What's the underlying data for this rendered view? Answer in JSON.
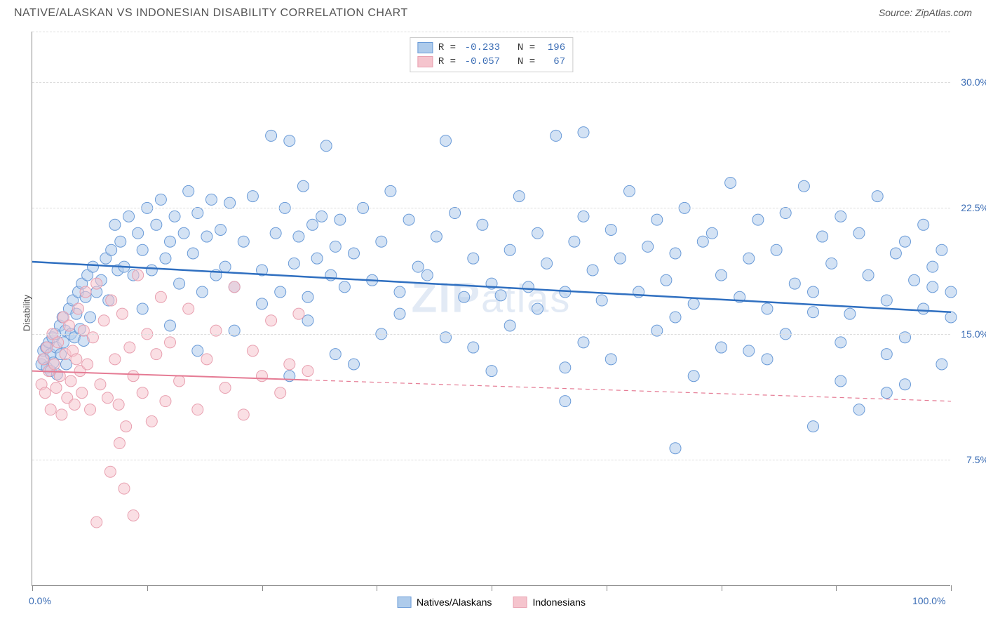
{
  "title": "NATIVE/ALASKAN VS INDONESIAN DISABILITY CORRELATION CHART",
  "source": "Source: ZipAtlas.com",
  "ylabel": "Disability",
  "watermark_bold": "ZIP",
  "watermark_rest": "atlas",
  "chart": {
    "type": "scatter",
    "xlim": [
      0,
      100
    ],
    "ylim": [
      0,
      33
    ],
    "y_gridlines": [
      7.5,
      15.0,
      22.5,
      30.0
    ],
    "y_grid_labels": [
      "7.5%",
      "15.0%",
      "22.5%",
      "30.0%"
    ],
    "x_ticks": [
      0,
      12.5,
      25,
      37.5,
      50,
      62.5,
      75,
      87.5,
      100
    ],
    "x_labels_shown": {
      "0": "0.0%",
      "100": "100.0%"
    },
    "grid_color": "#dddddd",
    "axis_color": "#888888",
    "label_color": "#3b6db5",
    "background": "#ffffff",
    "marker_radius": 8,
    "marker_opacity": 0.55,
    "series": [
      {
        "name": "Natives/Alaskans",
        "fill": "#aecbeb",
        "stroke": "#6a9bd8",
        "line_color": "#2f6fc0",
        "line_width": 2.5,
        "r": -0.233,
        "n": 196,
        "trend": {
          "x1": 0,
          "y1": 19.3,
          "x2": 100,
          "y2": 16.3,
          "dash_from": 100
        },
        "points": [
          [
            1,
            13.2
          ],
          [
            1.2,
            14
          ],
          [
            1.3,
            13.5
          ],
          [
            1.5,
            14.2
          ],
          [
            1.6,
            13
          ],
          [
            1.8,
            14.5
          ],
          [
            2,
            13.8
          ],
          [
            2,
            12.8
          ],
          [
            2.2,
            14.8
          ],
          [
            2.3,
            13.3
          ],
          [
            2.5,
            15
          ],
          [
            2.6,
            14.2
          ],
          [
            2.7,
            12.6
          ],
          [
            3,
            15.5
          ],
          [
            3.1,
            13.8
          ],
          [
            3.3,
            16
          ],
          [
            3.4,
            14.5
          ],
          [
            3.6,
            15.2
          ],
          [
            3.7,
            13.2
          ],
          [
            4,
            16.5
          ],
          [
            4.2,
            15
          ],
          [
            4.4,
            17
          ],
          [
            4.6,
            14.8
          ],
          [
            4.8,
            16.2
          ],
          [
            5,
            17.5
          ],
          [
            5.2,
            15.3
          ],
          [
            5.4,
            18
          ],
          [
            5.6,
            14.6
          ],
          [
            5.8,
            17.2
          ],
          [
            6,
            18.5
          ],
          [
            6.3,
            16
          ],
          [
            6.6,
            19
          ],
          [
            7,
            17.5
          ],
          [
            7.5,
            18.2
          ],
          [
            8,
            19.5
          ],
          [
            8.3,
            17
          ],
          [
            8.6,
            20
          ],
          [
            9,
            21.5
          ],
          [
            9.3,
            18.8
          ],
          [
            9.6,
            20.5
          ],
          [
            10,
            19
          ],
          [
            10.5,
            22
          ],
          [
            11,
            18.5
          ],
          [
            11.5,
            21
          ],
          [
            12,
            20
          ],
          [
            12.5,
            22.5
          ],
          [
            13,
            18.8
          ],
          [
            13.5,
            21.5
          ],
          [
            14,
            23
          ],
          [
            14.5,
            19.5
          ],
          [
            15,
            20.5
          ],
          [
            15.5,
            22
          ],
          [
            16,
            18
          ],
          [
            16.5,
            21
          ],
          [
            17,
            23.5
          ],
          [
            17.5,
            19.8
          ],
          [
            18,
            22.2
          ],
          [
            18.5,
            17.5
          ],
          [
            19,
            20.8
          ],
          [
            19.5,
            23
          ],
          [
            20,
            18.5
          ],
          [
            20.5,
            21.2
          ],
          [
            21,
            19
          ],
          [
            21.5,
            22.8
          ],
          [
            22,
            17.8
          ],
          [
            23,
            20.5
          ],
          [
            24,
            23.2
          ],
          [
            25,
            18.8
          ],
          [
            26,
            26.8
          ],
          [
            26.5,
            21
          ],
          [
            27,
            17.5
          ],
          [
            27.5,
            22.5
          ],
          [
            28,
            26.5
          ],
          [
            28.5,
            19.2
          ],
          [
            29,
            20.8
          ],
          [
            29.5,
            23.8
          ],
          [
            30,
            17.2
          ],
          [
            30.5,
            21.5
          ],
          [
            31,
            19.5
          ],
          [
            31.5,
            22
          ],
          [
            32,
            26.2
          ],
          [
            32.5,
            18.5
          ],
          [
            33,
            20.2
          ],
          [
            33.5,
            21.8
          ],
          [
            34,
            17.8
          ],
          [
            35,
            19.8
          ],
          [
            36,
            22.5
          ],
          [
            37,
            18.2
          ],
          [
            38,
            20.5
          ],
          [
            39,
            23.5
          ],
          [
            40,
            17.5
          ],
          [
            41,
            21.8
          ],
          [
            42,
            19
          ],
          [
            43,
            18.5
          ],
          [
            44,
            20.8
          ],
          [
            45,
            26.5
          ],
          [
            46,
            22.2
          ],
          [
            47,
            17.2
          ],
          [
            48,
            19.5
          ],
          [
            49,
            21.5
          ],
          [
            50,
            18
          ],
          [
            51,
            17.3
          ],
          [
            52,
            20
          ],
          [
            53,
            23.2
          ],
          [
            54,
            17.8
          ],
          [
            55,
            21
          ],
          [
            56,
            19.2
          ],
          [
            57,
            26.8
          ],
          [
            58,
            17.5
          ],
          [
            58,
            11
          ],
          [
            59,
            20.5
          ],
          [
            60,
            22
          ],
          [
            60,
            27
          ],
          [
            61,
            18.8
          ],
          [
            62,
            17
          ],
          [
            63,
            21.2
          ],
          [
            64,
            19.5
          ],
          [
            65,
            23.5
          ],
          [
            66,
            17.5
          ],
          [
            67,
            20.2
          ],
          [
            68,
            21.8
          ],
          [
            69,
            18.2
          ],
          [
            70,
            19.8
          ],
          [
            70,
            8.2
          ],
          [
            71,
            22.5
          ],
          [
            72,
            16.8
          ],
          [
            73,
            20.5
          ],
          [
            74,
            21
          ],
          [
            75,
            18.5
          ],
          [
            76,
            24
          ],
          [
            77,
            17.2
          ],
          [
            78,
            19.5
          ],
          [
            79,
            21.8
          ],
          [
            80,
            16.5
          ],
          [
            81,
            20
          ],
          [
            82,
            22.2
          ],
          [
            83,
            18
          ],
          [
            84,
            23.8
          ],
          [
            85,
            17.5
          ],
          [
            85,
            9.5
          ],
          [
            86,
            20.8
          ],
          [
            87,
            19.2
          ],
          [
            88,
            22
          ],
          [
            89,
            16.2
          ],
          [
            90,
            21
          ],
          [
            90,
            10.5
          ],
          [
            91,
            18.5
          ],
          [
            92,
            23.2
          ],
          [
            93,
            17
          ],
          [
            93,
            11.5
          ],
          [
            94,
            19.8
          ],
          [
            95,
            20.5
          ],
          [
            95,
            12
          ],
          [
            96,
            18.2
          ],
          [
            97,
            21.5
          ],
          [
            97,
            16.5
          ],
          [
            98,
            17.8
          ],
          [
            98,
            19
          ],
          [
            99,
            13.2
          ],
          [
            99,
            20
          ],
          [
            100,
            17.5
          ],
          [
            100,
            16
          ],
          [
            15,
            15.5
          ],
          [
            22,
            15.2
          ],
          [
            30,
            15.8
          ],
          [
            38,
            15
          ],
          [
            45,
            14.8
          ],
          [
            52,
            15.5
          ],
          [
            60,
            14.5
          ],
          [
            68,
            15.2
          ],
          [
            75,
            14.2
          ],
          [
            82,
            15
          ],
          [
            88,
            14.5
          ],
          [
            95,
            14.8
          ],
          [
            12,
            16.5
          ],
          [
            25,
            16.8
          ],
          [
            40,
            16.2
          ],
          [
            55,
            16.5
          ],
          [
            70,
            16
          ],
          [
            85,
            16.3
          ],
          [
            18,
            14
          ],
          [
            33,
            13.8
          ],
          [
            48,
            14.2
          ],
          [
            63,
            13.5
          ],
          [
            78,
            14
          ],
          [
            93,
            13.8
          ],
          [
            28,
            12.5
          ],
          [
            50,
            12.8
          ],
          [
            72,
            12.5
          ],
          [
            88,
            12.2
          ],
          [
            35,
            13.2
          ],
          [
            58,
            13
          ],
          [
            80,
            13.5
          ]
        ]
      },
      {
        "name": "Indonesians",
        "fill": "#f5c4cd",
        "stroke": "#e8a0b0",
        "line_color": "#e57b94",
        "line_width": 2,
        "r": -0.057,
        "n": 67,
        "trend": {
          "x1": 0,
          "y1": 12.8,
          "x2": 100,
          "y2": 11.0,
          "dash_from": 30
        },
        "points": [
          [
            1,
            12
          ],
          [
            1.2,
            13.5
          ],
          [
            1.4,
            11.5
          ],
          [
            1.6,
            14.2
          ],
          [
            1.8,
            12.8
          ],
          [
            2,
            10.5
          ],
          [
            2.2,
            15
          ],
          [
            2.4,
            13.2
          ],
          [
            2.6,
            11.8
          ],
          [
            2.8,
            14.5
          ],
          [
            3,
            12.5
          ],
          [
            3.2,
            10.2
          ],
          [
            3.4,
            16
          ],
          [
            3.6,
            13.8
          ],
          [
            3.8,
            11.2
          ],
          [
            4,
            15.5
          ],
          [
            4.2,
            12.2
          ],
          [
            4.4,
            14
          ],
          [
            4.6,
            10.8
          ],
          [
            4.8,
            13.5
          ],
          [
            5,
            16.5
          ],
          [
            5.2,
            12.8
          ],
          [
            5.4,
            11.5
          ],
          [
            5.6,
            15.2
          ],
          [
            5.8,
            17.5
          ],
          [
            6,
            13.2
          ],
          [
            6.3,
            10.5
          ],
          [
            6.6,
            14.8
          ],
          [
            7,
            18
          ],
          [
            7.4,
            12
          ],
          [
            7.8,
            15.8
          ],
          [
            8.2,
            11.2
          ],
          [
            8.6,
            17
          ],
          [
            9,
            13.5
          ],
          [
            9.4,
            10.8
          ],
          [
            9.8,
            16.2
          ],
          [
            10.2,
            9.5
          ],
          [
            10.6,
            14.2
          ],
          [
            11,
            12.5
          ],
          [
            11.5,
            18.5
          ],
          [
            12,
            11.5
          ],
          [
            12.5,
            15
          ],
          [
            13,
            9.8
          ],
          [
            13.5,
            13.8
          ],
          [
            14,
            17.2
          ],
          [
            14.5,
            11
          ],
          [
            15,
            14.5
          ],
          [
            16,
            12.2
          ],
          [
            17,
            16.5
          ],
          [
            18,
            10.5
          ],
          [
            19,
            13.5
          ],
          [
            20,
            15.2
          ],
          [
            21,
            11.8
          ],
          [
            22,
            17.8
          ],
          [
            23,
            10.2
          ],
          [
            24,
            14
          ],
          [
            25,
            12.5
          ],
          [
            26,
            15.8
          ],
          [
            27,
            11.5
          ],
          [
            28,
            13.2
          ],
          [
            29,
            16.2
          ],
          [
            30,
            12.8
          ],
          [
            7,
            3.8
          ],
          [
            10,
            5.8
          ],
          [
            11,
            4.2
          ],
          [
            8.5,
            6.8
          ],
          [
            9.5,
            8.5
          ]
        ]
      }
    ],
    "legend_bottom": [
      {
        "swatch_fill": "#aecbeb",
        "swatch_stroke": "#6a9bd8",
        "label": "Natives/Alaskans"
      },
      {
        "swatch_fill": "#f5c4cd",
        "swatch_stroke": "#e8a0b0",
        "label": "Indonesians"
      }
    ]
  }
}
